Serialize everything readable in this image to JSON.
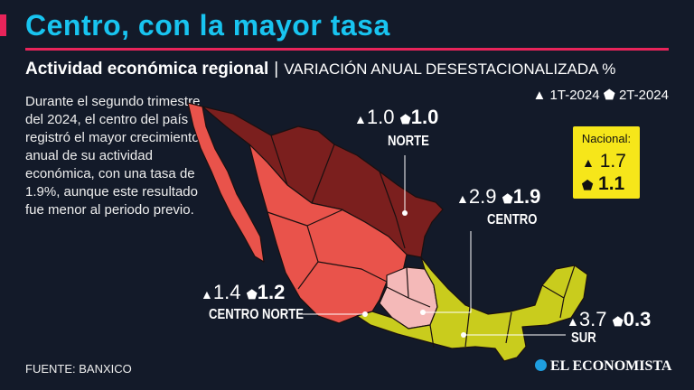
{
  "header": {
    "title": "Centro, con la mayor tasa",
    "subtitle_bold": "Actividad económica regional",
    "subtitle_sep": "|",
    "subtitle_light": "VARIACIÓN ANUAL DESESTACIONALIZADA %"
  },
  "legend": {
    "q1_icon": "triangle-icon",
    "q1_label": "1T-2024",
    "q2_icon": "pentagon-icon",
    "q2_label": "2T-2024"
  },
  "description": "Durante el segundo trimestre del 2024, el centro del país registró el mayor crecimiento anual de su actividad económica, con una tasa de 1.9%, aunque este resultado fue menor al periodo previo.",
  "regions": [
    {
      "name": "NORTE",
      "q1": "1.0",
      "q2": "1.0",
      "color": "#7b1f1e"
    },
    {
      "name": "CENTRO",
      "q1": "2.9",
      "q2": "1.9",
      "color": "#f4b9b8"
    },
    {
      "name": "CENTRO NORTE",
      "q1": "1.4",
      "q2": "1.2",
      "color": "#e9534b"
    },
    {
      "name": "SUR",
      "q1": "3.7",
      "q2": "0.3",
      "color": "#c9cc1d"
    }
  ],
  "nacional": {
    "label": "Nacional:",
    "q1": "1.7",
    "q2": "1.1",
    "color": "#f6e61a"
  },
  "source": "FUENTE: BANXICO",
  "logo": "EL ECONOMISTA",
  "symbols": {
    "tri": "▲",
    "pent": "⬟"
  }
}
